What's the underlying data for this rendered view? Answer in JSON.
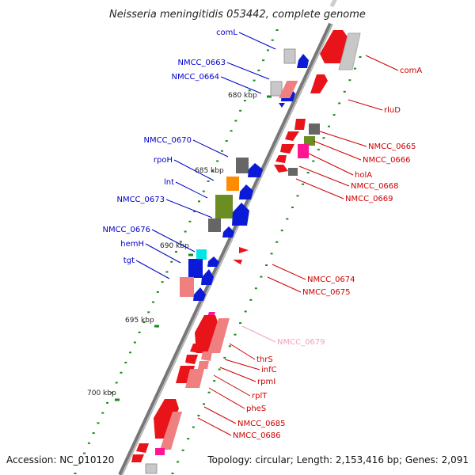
{
  "title": "Neisseria meningitidis 053442, complete genome",
  "footer": {
    "accession": "Accession: NC_010120",
    "topology": "Topology: circular; Length: 2,153,416 bp; Genes: 2,091"
  },
  "colors": {
    "forward_label": "#0000cc",
    "reverse_label": "#cc0000",
    "highlight_label": "#f4a0c0",
    "ring": "#888888",
    "dots": "#1a8a1a"
  },
  "kbp_marks": [
    "680 kbp",
    "685 kbp",
    "690 kbp",
    "695 kbp",
    "700 kbp"
  ],
  "forward_genes": [
    "comL",
    "NMCC_0663",
    "NMCC_0664",
    "NMCC_0670",
    "rpoH",
    "lnt",
    "NMCC_0673",
    "NMCC_0676",
    "hemH",
    "tgt"
  ],
  "reverse_genes": [
    "comA",
    "rluD",
    "NMCC_0665",
    "NMCC_0666",
    "holA",
    "NMCC_0668",
    "NMCC_0669",
    "NMCC_0674",
    "NMCC_0675",
    "NMCC_0679",
    "thrS",
    "infC",
    "rpmI",
    "rplT",
    "pheS",
    "NMCC_0685",
    "NMCC_0686"
  ]
}
